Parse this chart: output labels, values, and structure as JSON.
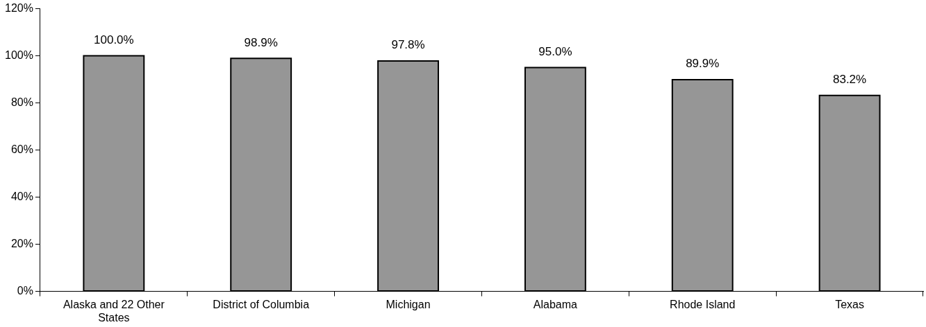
{
  "chart_data": {
    "type": "bar",
    "categories": [
      "Alaska and 22 Other States",
      "District of Columbia",
      "Michigan",
      "Alabama",
      "Rhode Island",
      "Texas"
    ],
    "values": [
      100.0,
      98.9,
      97.8,
      95.0,
      89.9,
      83.2
    ],
    "value_labels": [
      "100.0%",
      "98.9%",
      "97.8%",
      "95.0%",
      "89.9%",
      "83.2%"
    ],
    "color": "#969696",
    "ylim": [
      0,
      120
    ],
    "yticks": [
      {
        "value": 0,
        "label": "0%"
      },
      {
        "value": 20,
        "label": "20%"
      },
      {
        "value": 40,
        "label": "40%"
      },
      {
        "value": 60,
        "label": "60%"
      },
      {
        "value": 80,
        "label": "80%"
      },
      {
        "value": 100,
        "label": "100%"
      },
      {
        "value": 120,
        "label": "120%"
      }
    ],
    "grid": false,
    "legend": false
  }
}
